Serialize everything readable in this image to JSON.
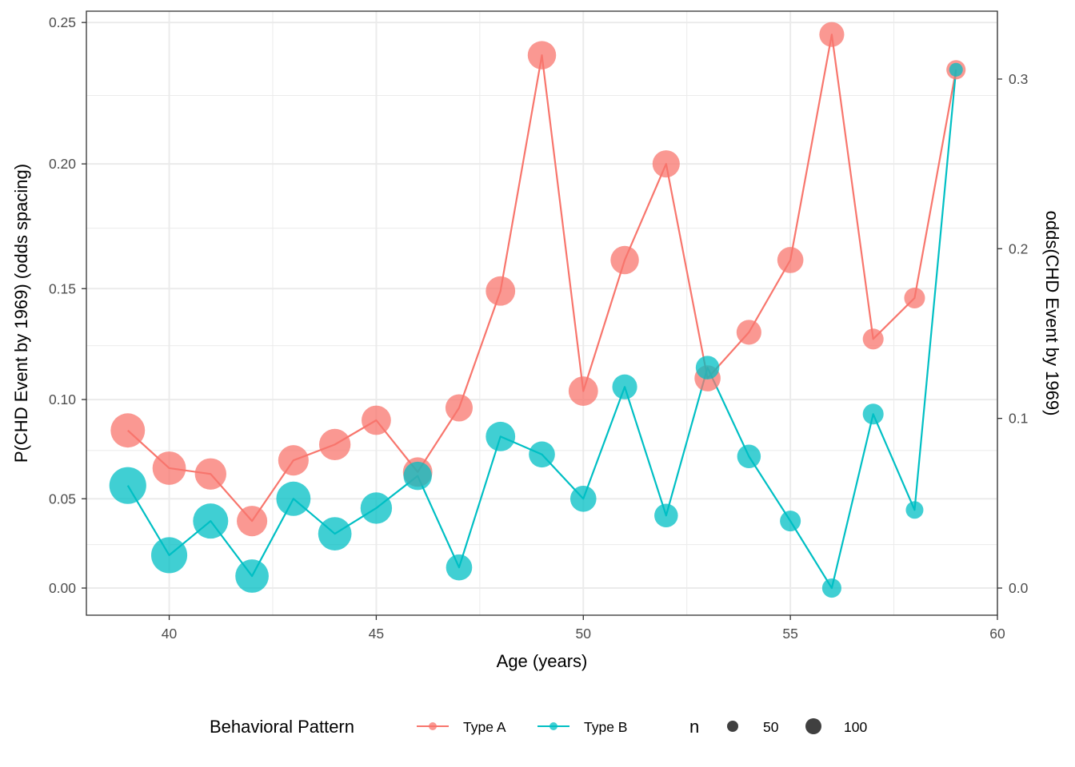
{
  "chart_data": {
    "type": "line",
    "xlabel": "Age (years)",
    "ylabel": "P(CHD Event by 1969) (odds spacing)",
    "y2label": "odds(CHD Event by 1969)",
    "xlim": [
      38,
      60
    ],
    "x_ticks": [
      40,
      45,
      50,
      55,
      60
    ],
    "y_ticks": [
      0.0,
      0.05,
      0.1,
      0.15,
      0.2,
      0.25
    ],
    "y_tick_labels": [
      "0.00",
      "0.05",
      "0.10",
      "0.15",
      "0.20",
      "0.25"
    ],
    "y2_ticks": [
      0.0,
      0.1,
      0.2,
      0.3
    ],
    "y2_tick_labels": [
      "0.0",
      "0.1",
      "0.2",
      "0.3"
    ],
    "odds_range": [
      -0.016,
      0.34
    ],
    "grid": true,
    "legend": {
      "position": "bottom",
      "color_title": "Behavioral Pattern",
      "size_title": "n",
      "size_entries": [
        {
          "label": "50",
          "n": 50
        },
        {
          "label": "100",
          "n": 100
        }
      ]
    },
    "series": [
      {
        "name": "Type A",
        "color": "#F8766D",
        "points": [
          {
            "x": 39,
            "p": 0.085,
            "n": 95
          },
          {
            "x": 40,
            "p": 0.066,
            "n": 90
          },
          {
            "x": 41,
            "p": 0.063,
            "n": 80
          },
          {
            "x": 42,
            "p": 0.038,
            "n": 75
          },
          {
            "x": 43,
            "p": 0.07,
            "n": 75
          },
          {
            "x": 44,
            "p": 0.078,
            "n": 80
          },
          {
            "x": 45,
            "p": 0.09,
            "n": 70
          },
          {
            "x": 46,
            "p": 0.064,
            "n": 70
          },
          {
            "x": 47,
            "p": 0.096,
            "n": 60
          },
          {
            "x": 48,
            "p": 0.149,
            "n": 70
          },
          {
            "x": 49,
            "p": 0.239,
            "n": 65
          },
          {
            "x": 50,
            "p": 0.104,
            "n": 70
          },
          {
            "x": 51,
            "p": 0.162,
            "n": 65
          },
          {
            "x": 52,
            "p": 0.2,
            "n": 60
          },
          {
            "x": 53,
            "p": 0.11,
            "n": 55
          },
          {
            "x": 54,
            "p": 0.131,
            "n": 50
          },
          {
            "x": 55,
            "p": 0.162,
            "n": 55
          },
          {
            "x": 56,
            "p": 0.246,
            "n": 50
          },
          {
            "x": 57,
            "p": 0.128,
            "n": 35
          },
          {
            "x": 58,
            "p": 0.146,
            "n": 35
          },
          {
            "x": 59,
            "p": 0.234,
            "n": 30
          }
        ]
      },
      {
        "name": "Type B",
        "color": "#00BFC4",
        "points": [
          {
            "x": 39,
            "p": 0.057,
            "n": 110
          },
          {
            "x": 40,
            "p": 0.019,
            "n": 105
          },
          {
            "x": 41,
            "p": 0.038,
            "n": 100
          },
          {
            "x": 42,
            "p": 0.007,
            "n": 90
          },
          {
            "x": 43,
            "p": 0.05,
            "n": 95
          },
          {
            "x": 44,
            "p": 0.031,
            "n": 90
          },
          {
            "x": 45,
            "p": 0.045,
            "n": 80
          },
          {
            "x": 46,
            "p": 0.062,
            "n": 65
          },
          {
            "x": 47,
            "p": 0.012,
            "n": 55
          },
          {
            "x": 48,
            "p": 0.082,
            "n": 70
          },
          {
            "x": 49,
            "p": 0.073,
            "n": 55
          },
          {
            "x": 50,
            "p": 0.05,
            "n": 55
          },
          {
            "x": 51,
            "p": 0.106,
            "n": 50
          },
          {
            "x": 52,
            "p": 0.041,
            "n": 45
          },
          {
            "x": 53,
            "p": 0.115,
            "n": 45
          },
          {
            "x": 54,
            "p": 0.072,
            "n": 45
          },
          {
            "x": 55,
            "p": 0.038,
            "n": 35
          },
          {
            "x": 56,
            "p": 0.0,
            "n": 30
          },
          {
            "x": 57,
            "p": 0.093,
            "n": 35
          },
          {
            "x": 58,
            "p": 0.044,
            "n": 25
          },
          {
            "x": 59,
            "p": 0.234,
            "n": 15
          }
        ]
      }
    ]
  }
}
